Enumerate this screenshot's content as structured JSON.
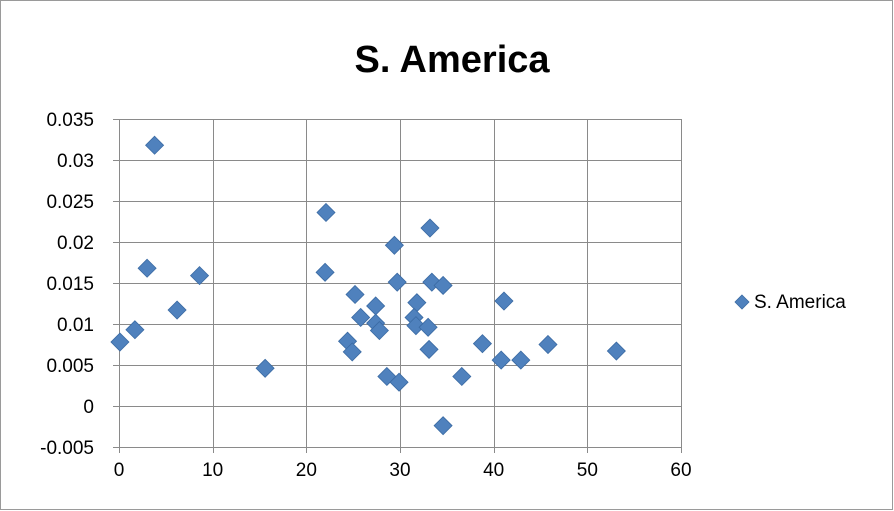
{
  "colors": {
    "marker": "#4f81bd",
    "marker_stroke": "#3a6aa3",
    "grid": "#8a8a8a",
    "axis": "#8a8a8a"
  },
  "chart_data": {
    "type": "scatter",
    "title": "S. America",
    "xlabel": "",
    "ylabel": "",
    "xlim": [
      0,
      60
    ],
    "ylim": [
      -0.005,
      0.035
    ],
    "x_ticks": [
      0,
      10,
      20,
      30,
      40,
      50,
      60
    ],
    "y_ticks": [
      -0.005,
      0,
      0.005,
      0.01,
      0.015,
      0.02,
      0.025,
      0.03,
      0.035
    ],
    "x_tick_labels": [
      "0",
      "10",
      "20",
      "30",
      "40",
      "50",
      "60"
    ],
    "y_tick_labels": [
      "-0.005",
      "0",
      "0.005",
      "0.01",
      "0.015",
      "0.02",
      "0.025",
      "0.03",
      "0.035"
    ],
    "grid": true,
    "legend_position": "right",
    "series": [
      {
        "name": "S. America",
        "marker": "diamond",
        "points": [
          [
            3.8,
            0.0318
          ],
          [
            3.0,
            0.0168
          ],
          [
            8.6,
            0.0159
          ],
          [
            6.2,
            0.0117
          ],
          [
            1.7,
            0.0093
          ],
          [
            0.1,
            0.0078
          ],
          [
            15.6,
            0.0046
          ],
          [
            22.1,
            0.0236
          ],
          [
            22.0,
            0.0163
          ],
          [
            25.2,
            0.0136
          ],
          [
            25.8,
            0.0108
          ],
          [
            27.4,
            0.0122
          ],
          [
            27.4,
            0.0101
          ],
          [
            27.8,
            0.0092
          ],
          [
            24.4,
            0.0079
          ],
          [
            24.9,
            0.0066
          ],
          [
            28.6,
            0.0036
          ],
          [
            29.9,
            0.0029
          ],
          [
            29.4,
            0.0196
          ],
          [
            29.7,
            0.0151
          ],
          [
            33.2,
            0.0217
          ],
          [
            33.4,
            0.0151
          ],
          [
            34.6,
            0.0147
          ],
          [
            31.8,
            0.0126
          ],
          [
            31.5,
            0.0108
          ],
          [
            31.7,
            0.0098
          ],
          [
            33.0,
            0.0096
          ],
          [
            33.1,
            0.0069
          ],
          [
            34.6,
            -0.0024
          ],
          [
            36.6,
            0.0036
          ],
          [
            38.8,
            0.0076
          ],
          [
            41.1,
            0.0128
          ],
          [
            40.8,
            0.0056
          ],
          [
            42.9,
            0.0056
          ],
          [
            45.8,
            0.0075
          ],
          [
            53.1,
            0.0067
          ]
        ]
      }
    ]
  }
}
